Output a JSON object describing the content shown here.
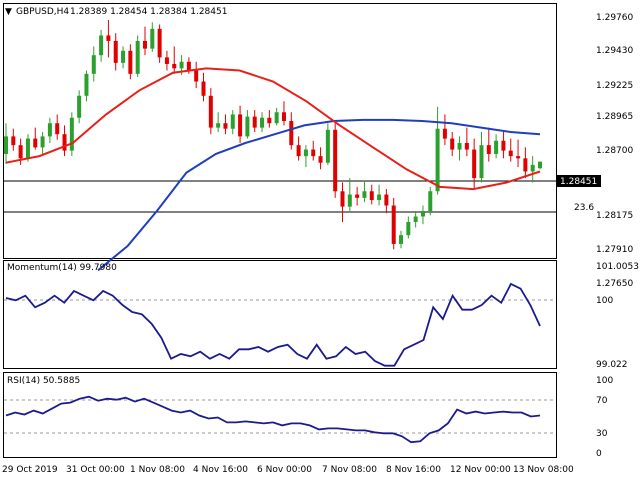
{
  "header": {
    "symbol": "GBPUSD,H4",
    "ohlc": "1.28389 1.28454 1.28384 1.28451"
  },
  "colors": {
    "bull": "#2ca02c",
    "bear": "#e00000",
    "ema_fast": "#e8201a",
    "ema_slow": "#1f3fbf",
    "indicator": "#1b1b8f",
    "frame": "#000000"
  },
  "price_panel": {
    "current_price_label": "1.28451",
    "current_price": 1.28451,
    "fib_level_label": "23.6",
    "fib_level": 1.2821,
    "y_ticks": [
      "1.29760",
      "1.29430",
      "1.29225",
      "1.28965",
      "1.28700",
      "1.28175",
      "1.27910",
      "1.27650"
    ]
  },
  "momentum_panel": {
    "title": "Momentum(14) 99.7980",
    "y_ticks": [
      "101.0053",
      "100",
      "99.022"
    ]
  },
  "rsi_panel": {
    "title": "RSI(14) 50.5885",
    "y_ticks": [
      "100",
      "70",
      "30",
      "0"
    ],
    "levels": [
      70,
      30
    ]
  },
  "x_axis": {
    "labels": [
      "29 Oct 2019",
      "31 Oct 00:00",
      "1 Nov 08:00",
      "4 Nov 16:00",
      "6 Nov 00:00",
      "7 Nov 08:00",
      "8 Nov 16:00",
      "12 Nov 00:00",
      "13 Nov 08:00"
    ]
  },
  "chart_data": {
    "type": "candlestick",
    "symbol": "GBPUSD",
    "timeframe": "H4",
    "price_range": [
      1.2759,
      1.2985
    ],
    "candles": [
      [
        1.2852,
        1.288,
        1.2843,
        1.2868
      ],
      [
        1.2868,
        1.2875,
        1.2855,
        1.286
      ],
      [
        1.286,
        1.2866,
        1.2842,
        1.2848
      ],
      [
        1.2848,
        1.287,
        1.2845,
        1.2866
      ],
      [
        1.2866,
        1.2876,
        1.2856,
        1.2858
      ],
      [
        1.2858,
        1.2872,
        1.2852,
        1.2868
      ],
      [
        1.2868,
        1.2885,
        1.2862,
        1.288
      ],
      [
        1.288,
        1.2888,
        1.2865,
        1.287
      ],
      [
        1.287,
        1.2878,
        1.285,
        1.2855
      ],
      [
        1.2855,
        1.289,
        1.285,
        1.2885
      ],
      [
        1.2885,
        1.291,
        1.288,
        1.2905
      ],
      [
        1.2905,
        1.2928,
        1.29,
        1.2925
      ],
      [
        1.2925,
        1.295,
        1.2918,
        1.2942
      ],
      [
        1.2942,
        1.2965,
        1.2936,
        1.296
      ],
      [
        1.296,
        1.2974,
        1.294,
        1.2955
      ],
      [
        1.2955,
        1.2962,
        1.2928,
        1.2935
      ],
      [
        1.2935,
        1.295,
        1.293,
        1.2946
      ],
      [
        1.2946,
        1.2952,
        1.292,
        1.2925
      ],
      [
        1.2925,
        1.296,
        1.2922,
        1.2955
      ],
      [
        1.2955,
        1.2968,
        1.2942,
        1.2948
      ],
      [
        1.2948,
        1.2972,
        1.2945,
        1.2966
      ],
      [
        1.2966,
        1.297,
        1.2935,
        1.294
      ],
      [
        1.294,
        1.2946,
        1.2928,
        1.2934
      ],
      [
        1.2934,
        1.295,
        1.2925,
        1.293
      ],
      [
        1.293,
        1.2942,
        1.2924,
        1.2936
      ],
      [
        1.2936,
        1.294,
        1.2925,
        1.2928
      ],
      [
        1.2928,
        1.2936,
        1.2912,
        1.2918
      ],
      [
        1.2918,
        1.2926,
        1.29,
        1.2905
      ],
      [
        1.2905,
        1.2912,
        1.287,
        1.2876
      ],
      [
        1.2876,
        1.289,
        1.2872,
        1.288
      ],
      [
        1.288,
        1.2888,
        1.287,
        1.2875
      ],
      [
        1.2875,
        1.2892,
        1.287,
        1.2888
      ],
      [
        1.2888,
        1.2896,
        1.2862,
        1.2868
      ],
      [
        1.2868,
        1.2892,
        1.2866,
        1.2886
      ],
      [
        1.2886,
        1.2892,
        1.2872,
        1.2876
      ],
      [
        1.2876,
        1.289,
        1.2872,
        1.2885
      ],
      [
        1.2885,
        1.2892,
        1.2876,
        1.288
      ],
      [
        1.288,
        1.2894,
        1.2878,
        1.289
      ],
      [
        1.289,
        1.29,
        1.2878,
        1.2882
      ],
      [
        1.2882,
        1.289,
        1.2856,
        1.286
      ],
      [
        1.286,
        1.2868,
        1.2846,
        1.285
      ],
      [
        1.285,
        1.286,
        1.284,
        1.2856
      ],
      [
        1.2856,
        1.2864,
        1.2846,
        1.285
      ],
      [
        1.285,
        1.2858,
        1.2838,
        1.2844
      ],
      [
        1.2844,
        1.288,
        1.2842,
        1.2874
      ],
      [
        1.2874,
        1.288,
        1.2812,
        1.2818
      ],
      [
        1.2818,
        1.2826,
        1.279,
        1.2804
      ],
      [
        1.2804,
        1.283,
        1.28,
        1.2815
      ],
      [
        1.2815,
        1.2822,
        1.2805,
        1.2812
      ],
      [
        1.2812,
        1.2828,
        1.2808,
        1.2818
      ],
      [
        1.2818,
        1.2824,
        1.2806,
        1.281
      ],
      [
        1.281,
        1.2824,
        1.2805,
        1.2815
      ],
      [
        1.2815,
        1.282,
        1.2798,
        1.2805
      ],
      [
        1.2805,
        1.2812,
        1.2765,
        1.277
      ],
      [
        1.277,
        1.2782,
        1.2766,
        1.2778
      ],
      [
        1.2778,
        1.2795,
        1.2775,
        1.279
      ],
      [
        1.279,
        1.28,
        1.2785,
        1.2795
      ],
      [
        1.2795,
        1.2805,
        1.2788,
        1.28
      ],
      [
        1.28,
        1.2822,
        1.2796,
        1.2818
      ],
      [
        1.2818,
        1.2895,
        1.2815,
        1.2875
      ],
      [
        1.2875,
        1.2888,
        1.286,
        1.2866
      ],
      [
        1.2866,
        1.2872,
        1.285,
        1.2856
      ],
      [
        1.2856,
        1.2868,
        1.2846,
        1.2862
      ],
      [
        1.2862,
        1.2876,
        1.285,
        1.2856
      ],
      [
        1.2856,
        1.2866,
        1.282,
        1.283
      ],
      [
        1.283,
        1.2872,
        1.2826,
        1.286
      ],
      [
        1.286,
        1.2876,
        1.2845,
        1.2852
      ],
      [
        1.2852,
        1.287,
        1.2848,
        1.2864
      ],
      [
        1.2864,
        1.2872,
        1.2848,
        1.2855
      ],
      [
        1.2855,
        1.2866,
        1.2845,
        1.285
      ],
      [
        1.285,
        1.2865,
        1.284,
        1.2848
      ],
      [
        1.2848,
        1.2858,
        1.283,
        1.2836
      ],
      [
        1.2836,
        1.285,
        1.2826,
        1.2842
      ],
      [
        1.2839,
        1.2845,
        1.2838,
        1.2845
      ]
    ],
    "ema_fast": [
      1.2844,
      1.285,
      1.2862,
      1.2888,
      1.291,
      1.2926,
      1.293,
      1.2928,
      1.2918,
      1.29,
      1.2878,
      1.2858,
      1.2838,
      1.2822,
      1.282,
      1.2826,
      1.2836
    ],
    "ema_slow": [
      1.2746,
      1.2768,
      1.28,
      1.2835,
      1.2852,
      1.2862,
      1.287,
      1.2878,
      1.2882,
      1.2883,
      1.2883,
      1.2882,
      1.288,
      1.2876,
      1.2872,
      1.287
    ],
    "momentum": {
      "range": [
        98.9,
        101.15
      ],
      "values": [
        100.4,
        100.35,
        100.45,
        100.2,
        100.3,
        100.45,
        100.3,
        100.55,
        100.45,
        100.35,
        100.55,
        100.45,
        100.25,
        100.1,
        100.05,
        99.85,
        99.55,
        99.1,
        99.2,
        99.15,
        99.25,
        99.1,
        99.2,
        99.1,
        99.3,
        99.3,
        99.35,
        99.25,
        99.35,
        99.4,
        99.2,
        99.1,
        99.4,
        99.1,
        99.15,
        99.35,
        99.2,
        99.25,
        99.05,
        98.95,
        98.95,
        99.3,
        99.4,
        99.5,
        100.2,
        99.95,
        100.45,
        100.15,
        100.15,
        100.25,
        100.45,
        100.3,
        100.7,
        100.6,
        100.25,
        99.8
      ]
    },
    "rsi": {
      "range": [
        0,
        100
      ],
      "values": [
        51,
        54,
        52,
        56,
        53,
        58,
        63,
        64,
        68,
        70,
        66,
        68,
        67,
        69,
        65,
        68,
        64,
        60,
        56,
        54,
        56,
        51,
        48,
        49,
        44,
        44,
        45,
        44,
        43,
        44,
        41,
        43,
        43,
        41,
        37,
        38,
        38,
        37,
        36,
        36,
        34,
        33,
        33,
        30,
        24,
        25,
        33,
        36,
        43,
        57,
        53,
        55,
        53,
        54,
        55,
        54,
        54,
        50,
        51
      ]
    }
  }
}
